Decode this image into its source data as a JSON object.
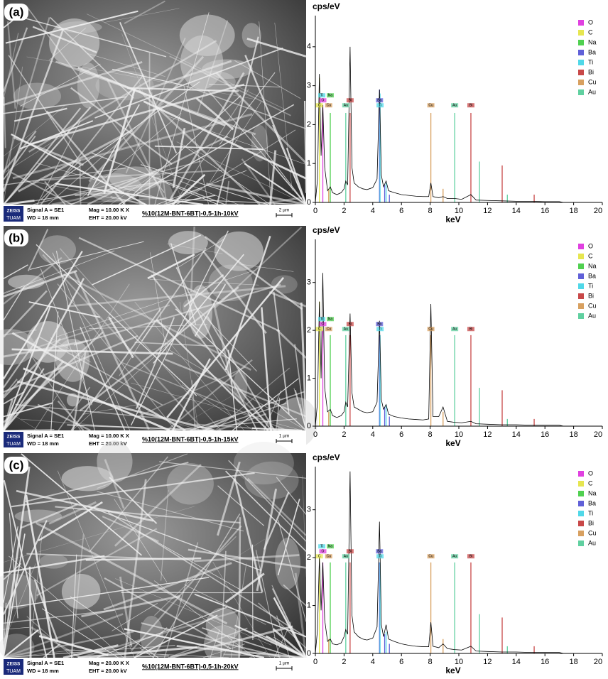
{
  "micrographs": [
    {
      "panel": "(a)",
      "brand": "ZEISS",
      "lab": "TUAM",
      "signal": "Signal A = SE1",
      "wd": "WD =  18 mm",
      "mag": "Mag =  10.00 K X",
      "eht": "EHT = 20.00 kV",
      "sample": "%10(12M-BNT-6BT)-0,5-1h-10kV",
      "scale": "2 µm"
    },
    {
      "panel": "(b)",
      "brand": "ZEISS",
      "lab": "TUAM",
      "signal": "Signal A = SE1",
      "wd": "WD =  18 mm",
      "mag": "Mag =  10.00 K X",
      "eht": "EHT = 20.00 kV",
      "sample": "%10(12M-BNT-6BT)-0,5-1h-15kV",
      "scale": "1 µm"
    },
    {
      "panel": "(c)",
      "brand": "ZEISS",
      "lab": "TUAM",
      "signal": "Signal A = SE1",
      "wd": "WD =  18 mm",
      "mag": "Mag =  20.00 K X",
      "eht": "EHT = 20.00 kV",
      "sample": "%10(12M-BNT-6BT)-0,5-1h-20kV",
      "scale": "1 µm"
    }
  ],
  "chart_data": [
    {
      "type": "line",
      "ylabel": "cps/eV",
      "xlabel": "keV",
      "color": "#000000",
      "x": [
        0,
        0.15,
        0.28,
        0.4,
        0.52,
        0.65,
        0.85,
        1.04,
        1.2,
        1.5,
        1.8,
        2.0,
        2.12,
        2.25,
        2.42,
        2.55,
        2.7,
        3.0,
        3.3,
        3.6,
        4.0,
        4.3,
        4.47,
        4.6,
        4.75,
        4.93,
        5.1,
        5.5,
        6,
        6.5,
        7,
        7.5,
        7.9,
        8.05,
        8.2,
        8.6,
        8.9,
        9.2,
        9.7,
        10.2,
        10.84,
        11.2,
        12,
        13,
        14,
        15,
        16,
        17,
        17.3
      ],
      "values": [
        0,
        0.6,
        3.3,
        1.2,
        2.5,
        0.9,
        0.3,
        0.4,
        0.25,
        0.2,
        0.25,
        0.35,
        0.55,
        0.45,
        4.0,
        0.9,
        0.5,
        0.4,
        0.35,
        0.33,
        0.38,
        0.6,
        2.9,
        0.7,
        0.4,
        0.55,
        0.3,
        0.25,
        0.2,
        0.18,
        0.16,
        0.15,
        0.15,
        0.5,
        0.15,
        0.12,
        0.15,
        0.1,
        0.1,
        0.08,
        0.2,
        0.06,
        0.05,
        0.04,
        0.03,
        0.03,
        0.02,
        0.02,
        0
      ],
      "xlim": [
        0,
        20
      ],
      "ylim": [
        0,
        4.8
      ],
      "xticks": [
        0,
        2,
        4,
        6,
        8,
        10,
        12,
        14,
        16,
        18,
        20
      ],
      "yticks": [
        0,
        1,
        2,
        3,
        4
      ],
      "series": [
        {
          "name": "O",
          "color": "#e040e0",
          "x": [
            0.52
          ],
          "values": [
            2.5
          ]
        },
        {
          "name": "C",
          "color": "#e6e650",
          "x": [
            0.28
          ],
          "values": [
            3.2
          ]
        },
        {
          "name": "Na",
          "color": "#50d050",
          "x": [
            1.04
          ],
          "values": [
            2.3
          ]
        },
        {
          "name": "Ba",
          "color": "#6060d8",
          "x": [
            4.47,
            4.83,
            5.16
          ],
          "values": [
            2.9,
            0.45,
            0.2
          ]
        },
        {
          "name": "Ti",
          "color": "#50d8e8",
          "x": [
            4.51,
            4.93
          ],
          "values": [
            2.8,
            0.5
          ]
        },
        {
          "name": "Bi",
          "color": "#c84848",
          "x": [
            2.42,
            10.84,
            13.02,
            15.25
          ],
          "values": [
            2.3,
            2.3,
            0.95,
            0.2
          ]
        },
        {
          "name": "Cu",
          "color": "#d8a060",
          "x": [
            0.93,
            8.05,
            8.9
          ],
          "values": [
            0.35,
            2.3,
            0.35
          ]
        },
        {
          "name": "Au",
          "color": "#60d0a0",
          "x": [
            2.12,
            9.71,
            11.44,
            13.38
          ],
          "values": [
            2.3,
            2.3,
            1.05,
            0.2
          ]
        }
      ],
      "peak_labels": [
        {
          "text": "C",
          "x": 0.28
        },
        {
          "text": "O",
          "x": 0.52
        },
        {
          "text": "Ti",
          "x": 0.45
        },
        {
          "text": "Cu",
          "x": 0.93
        },
        {
          "text": "Na",
          "x": 1.04
        },
        {
          "text": "Au",
          "x": 2.12
        },
        {
          "text": "Bi",
          "x": 2.42
        },
        {
          "text": "Ti",
          "x": 4.51
        },
        {
          "text": "Ba",
          "x": 4.47
        },
        {
          "text": "Cu",
          "x": 8.05
        },
        {
          "text": "Au",
          "x": 9.71
        },
        {
          "text": "Bi",
          "x": 10.84
        }
      ]
    },
    {
      "type": "line",
      "ylabel": "cps/eV",
      "xlabel": "keV",
      "color": "#000000",
      "x": [
        0,
        0.15,
        0.28,
        0.4,
        0.52,
        0.65,
        0.85,
        1.04,
        1.2,
        1.5,
        1.8,
        2.0,
        2.12,
        2.25,
        2.42,
        2.55,
        2.7,
        3.0,
        3.3,
        3.6,
        4.0,
        4.3,
        4.47,
        4.6,
        4.75,
        4.93,
        5.1,
        5.5,
        6,
        6.5,
        7,
        7.5,
        7.9,
        8.05,
        8.2,
        8.6,
        8.9,
        9.2,
        9.7,
        10.2,
        10.84,
        11.2,
        12,
        13,
        14,
        15,
        16,
        17,
        17.3
      ],
      "values": [
        0,
        0.5,
        2.6,
        1.0,
        3.2,
        0.8,
        0.3,
        0.35,
        0.22,
        0.18,
        0.22,
        0.3,
        0.5,
        0.4,
        2.35,
        0.7,
        0.4,
        0.35,
        0.3,
        0.28,
        0.3,
        0.5,
        2.2,
        0.55,
        0.35,
        0.45,
        0.25,
        0.2,
        0.17,
        0.15,
        0.14,
        0.13,
        0.15,
        2.55,
        0.2,
        0.2,
        0.4,
        0.1,
        0.08,
        0.07,
        0.1,
        0.05,
        0.04,
        0.03,
        0.03,
        0.02,
        0.02,
        0.02,
        0
      ],
      "xlim": [
        0,
        20
      ],
      "ylim": [
        0,
        3.9
      ],
      "xticks": [
        0,
        2,
        4,
        6,
        8,
        10,
        12,
        14,
        16,
        18,
        20
      ],
      "yticks": [
        0,
        1,
        2,
        3
      ],
      "series": [
        {
          "name": "O",
          "color": "#e040e0",
          "x": [
            0.52
          ],
          "values": [
            2.0
          ]
        },
        {
          "name": "C",
          "color": "#e6e650",
          "x": [
            0.28
          ],
          "values": [
            2.6
          ]
        },
        {
          "name": "Na",
          "color": "#50d050",
          "x": [
            1.04
          ],
          "values": [
            1.9
          ]
        },
        {
          "name": "Ba",
          "color": "#6060d8",
          "x": [
            4.47,
            4.83,
            5.16
          ],
          "values": [
            1.9,
            0.4,
            0.2
          ]
        },
        {
          "name": "Ti",
          "color": "#50d8e8",
          "x": [
            4.51,
            4.93
          ],
          "values": [
            1.9,
            0.45
          ]
        },
        {
          "name": "Bi",
          "color": "#c84848",
          "x": [
            2.42,
            10.84,
            13.02,
            15.25
          ],
          "values": [
            1.9,
            1.9,
            0.75,
            0.15
          ]
        },
        {
          "name": "Cu",
          "color": "#d8a060",
          "x": [
            0.93,
            8.05,
            8.9
          ],
          "values": [
            0.3,
            1.9,
            0.3
          ]
        },
        {
          "name": "Au",
          "color": "#60d0a0",
          "x": [
            2.12,
            9.71,
            11.44,
            13.38
          ],
          "values": [
            1.9,
            1.9,
            0.8,
            0.15
          ]
        }
      ],
      "peak_labels": [
        {
          "text": "C",
          "x": 0.28
        },
        {
          "text": "O",
          "x": 0.52
        },
        {
          "text": "Ti",
          "x": 0.45
        },
        {
          "text": "Cu",
          "x": 0.93
        },
        {
          "text": "Na",
          "x": 1.04
        },
        {
          "text": "Au",
          "x": 2.12
        },
        {
          "text": "Bi",
          "x": 2.42
        },
        {
          "text": "Ti",
          "x": 4.51
        },
        {
          "text": "Ba",
          "x": 4.47
        },
        {
          "text": "Cu",
          "x": 8.05
        },
        {
          "text": "Au",
          "x": 9.71
        },
        {
          "text": "Bi",
          "x": 10.84
        }
      ]
    },
    {
      "type": "line",
      "ylabel": "cps/eV",
      "xlabel": "keV",
      "color": "#000000",
      "x": [
        0,
        0.15,
        0.28,
        0.4,
        0.52,
        0.65,
        0.85,
        1.04,
        1.2,
        1.5,
        1.8,
        2.0,
        2.12,
        2.25,
        2.42,
        2.55,
        2.7,
        3.0,
        3.3,
        3.6,
        4.0,
        4.3,
        4.47,
        4.6,
        4.75,
        4.93,
        5.1,
        5.5,
        6,
        6.5,
        7,
        7.5,
        7.9,
        8.05,
        8.2,
        8.6,
        8.9,
        9.2,
        9.7,
        10.2,
        10.84,
        11.2,
        12,
        13,
        14,
        15,
        16,
        17,
        17.3
      ],
      "values": [
        0,
        0.5,
        2.0,
        0.9,
        1.9,
        0.7,
        0.25,
        0.3,
        0.2,
        0.18,
        0.22,
        0.35,
        0.5,
        0.4,
        3.8,
        0.8,
        0.45,
        0.35,
        0.3,
        0.28,
        0.32,
        0.55,
        2.75,
        0.6,
        0.35,
        0.6,
        0.3,
        0.25,
        0.2,
        0.17,
        0.15,
        0.14,
        0.14,
        0.65,
        0.15,
        0.12,
        0.2,
        0.1,
        0.08,
        0.07,
        0.15,
        0.05,
        0.04,
        0.03,
        0.03,
        0.02,
        0.02,
        0.02,
        0
      ],
      "xlim": [
        0,
        20
      ],
      "ylim": [
        0,
        3.9
      ],
      "xticks": [
        0,
        2,
        4,
        6,
        8,
        10,
        12,
        14,
        16,
        18,
        20
      ],
      "yticks": [
        0,
        1,
        2,
        3
      ],
      "series": [
        {
          "name": "O",
          "color": "#e040e0",
          "x": [
            0.52
          ],
          "values": [
            1.9
          ]
        },
        {
          "name": "C",
          "color": "#e6e650",
          "x": [
            0.28
          ],
          "values": [
            2.0
          ]
        },
        {
          "name": "Na",
          "color": "#50d050",
          "x": [
            1.04
          ],
          "values": [
            1.9
          ]
        },
        {
          "name": "Ba",
          "color": "#6060d8",
          "x": [
            4.47,
            4.83,
            5.16
          ],
          "values": [
            1.9,
            0.4,
            0.2
          ]
        },
        {
          "name": "Ti",
          "color": "#50d8e8",
          "x": [
            4.51,
            4.93
          ],
          "values": [
            1.9,
            0.45
          ]
        },
        {
          "name": "Bi",
          "color": "#c84848",
          "x": [
            2.42,
            10.84,
            13.02,
            15.25
          ],
          "values": [
            1.9,
            1.9,
            0.75,
            0.15
          ]
        },
        {
          "name": "Cu",
          "color": "#d8a060",
          "x": [
            0.93,
            8.05,
            8.9
          ],
          "values": [
            0.3,
            1.9,
            0.3
          ]
        },
        {
          "name": "Au",
          "color": "#60d0a0",
          "x": [
            2.12,
            9.71,
            11.44,
            13.38
          ],
          "values": [
            1.9,
            1.9,
            0.82,
            0.15
          ]
        }
      ],
      "peak_labels": [
        {
          "text": "C",
          "x": 0.28
        },
        {
          "text": "O",
          "x": 0.52
        },
        {
          "text": "Ti",
          "x": 0.45
        },
        {
          "text": "Cu",
          "x": 0.93
        },
        {
          "text": "Na",
          "x": 1.04
        },
        {
          "text": "Au",
          "x": 2.12
        },
        {
          "text": "Bi",
          "x": 2.42
        },
        {
          "text": "Ti",
          "x": 4.51
        },
        {
          "text": "Ba",
          "x": 4.47
        },
        {
          "text": "Cu",
          "x": 8.05
        },
        {
          "text": "Au",
          "x": 9.71
        },
        {
          "text": "Bi",
          "x": 10.84
        }
      ]
    }
  ]
}
